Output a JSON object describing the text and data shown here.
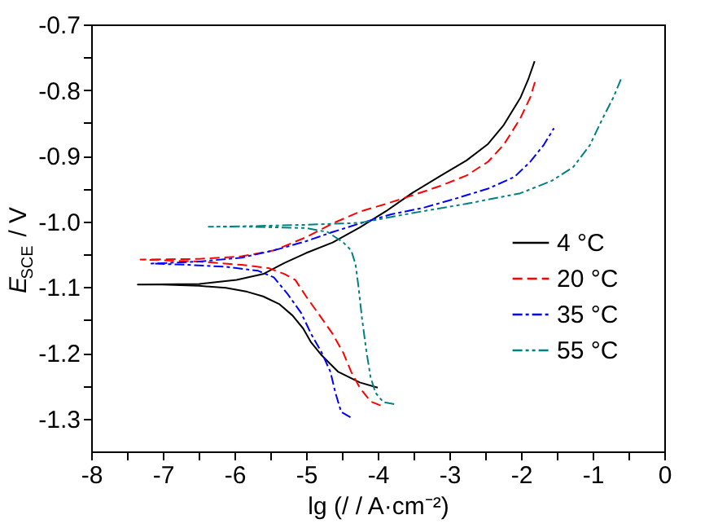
{
  "chart_data": {
    "type": "line",
    "xlabel": "lg (/ / A·cm⁻²)",
    "ylabel": "E$_{SCE}$ / V",
    "xlim": [
      -8,
      0
    ],
    "xticks": [
      -8,
      {
        "value": -7.5,
        "label": null
      },
      -7,
      {
        "value": -6.5,
        "label": null
      },
      -6,
      {
        "value": -5.5,
        "label": null
      },
      -5,
      {
        "value": -4.5,
        "label": null
      },
      -4,
      {
        "value": -3.5,
        "label": null
      },
      -3,
      {
        "value": -2.5,
        "label": null
      },
      -2,
      {
        "value": -1.5,
        "label": null
      },
      -1,
      {
        "value": -0.5,
        "label": null
      },
      0
    ],
    "ylim": [
      -1.35,
      -0.7
    ],
    "yticks": [
      {
        "value": -1.3,
        "label": "-1.3"
      },
      {
        "value": -1.25,
        "label": null
      },
      {
        "value": -1.2,
        "label": "-1.2"
      },
      {
        "value": -1.15,
        "label": null
      },
      {
        "value": -1.1,
        "label": "-1.1"
      },
      {
        "value": -1.05,
        "label": null
      },
      {
        "value": -1.0,
        "label": "-1.0"
      },
      {
        "value": -0.95,
        "label": null
      },
      {
        "value": -0.9,
        "label": "-0.9"
      },
      {
        "value": -0.85,
        "label": null
      },
      {
        "value": -0.8,
        "label": "-0.8"
      },
      {
        "value": -0.75,
        "label": null
      },
      {
        "value": -0.7,
        "label": "-0.7"
      }
    ],
    "grid": false,
    "legend": "right",
    "marker": "none",
    "series": [
      {
        "name": "4 °C",
        "color": "#000000",
        "line_style": "solid",
        "x": [
          -4.0,
          -4.25,
          -4.55,
          -4.78,
          -4.93,
          -5.04,
          -5.19,
          -5.37,
          -5.6,
          -5.82,
          -6.12,
          -6.49,
          -7.01,
          -7.35,
          -6.49,
          -5.97,
          -5.6,
          -5.3,
          -5.0,
          -4.63,
          -4.25,
          -3.88,
          -3.51,
          -3.13,
          -2.76,
          -2.46,
          -2.24,
          -2.01,
          -1.9,
          -1.81
        ],
        "values": [
          -1.253,
          -1.245,
          -1.229,
          -1.204,
          -1.184,
          -1.163,
          -1.143,
          -1.126,
          -1.114,
          -1.107,
          -1.101,
          -1.098,
          -1.096,
          -1.096,
          -1.095,
          -1.089,
          -1.08,
          -1.063,
          -1.048,
          -1.032,
          -1.009,
          -0.984,
          -0.956,
          -0.931,
          -0.907,
          -0.882,
          -0.853,
          -0.812,
          -0.784,
          -0.756
        ]
      },
      {
        "name": "20 °C",
        "color": "#ff0000",
        "line_style": "dashed",
        "x": [
          -3.96,
          -4.1,
          -4.25,
          -4.37,
          -4.48,
          -4.63,
          -4.81,
          -5.0,
          -5.15,
          -5.3,
          -5.52,
          -5.9,
          -6.49,
          -7.01,
          -7.31,
          -6.49,
          -5.9,
          -5.45,
          -5.0,
          -4.63,
          -4.25,
          -3.88,
          -3.51,
          -3.13,
          -2.76,
          -2.46,
          -2.24,
          -2.01,
          -1.87,
          -1.79
        ],
        "values": [
          -1.28,
          -1.274,
          -1.253,
          -1.229,
          -1.2,
          -1.171,
          -1.143,
          -1.114,
          -1.089,
          -1.08,
          -1.071,
          -1.066,
          -1.061,
          -1.059,
          -1.058,
          -1.057,
          -1.053,
          -1.044,
          -1.024,
          -1.003,
          -0.985,
          -0.973,
          -0.96,
          -0.946,
          -0.93,
          -0.909,
          -0.883,
          -0.843,
          -0.811,
          -0.782
        ]
      },
      {
        "name": "35 °C",
        "color": "#0000ff",
        "line_style": "dashdot",
        "x": [
          -4.38,
          -4.51,
          -4.59,
          -4.66,
          -4.78,
          -4.93,
          -5.07,
          -5.26,
          -5.45,
          -5.67,
          -6.12,
          -6.64,
          -7.16,
          -6.49,
          -5.9,
          -5.45,
          -5.0,
          -4.63,
          -4.25,
          -3.81,
          -3.36,
          -2.91,
          -2.46,
          -2.09,
          -1.87,
          -1.68,
          -1.54
        ],
        "values": [
          -1.298,
          -1.29,
          -1.261,
          -1.229,
          -1.2,
          -1.171,
          -1.139,
          -1.11,
          -1.085,
          -1.075,
          -1.069,
          -1.066,
          -1.064,
          -1.061,
          -1.055,
          -1.044,
          -1.03,
          -1.016,
          -1.003,
          -0.989,
          -0.979,
          -0.965,
          -0.95,
          -0.932,
          -0.909,
          -0.883,
          -0.858
        ]
      },
      {
        "name": "55 °C",
        "color": "#008080",
        "line_style": "dashdotdot",
        "x": [
          -3.77,
          -3.92,
          -4.03,
          -4.1,
          -4.16,
          -4.22,
          -4.27,
          -4.31,
          -4.37,
          -4.48,
          -4.7,
          -5.0,
          -5.75,
          -6.36,
          -5.75,
          -5.0,
          -4.25,
          -3.51,
          -2.76,
          -2.01,
          -1.57,
          -1.27,
          -1.04,
          -0.86,
          -0.71,
          -0.6
        ],
        "values": [
          -1.278,
          -1.275,
          -1.261,
          -1.237,
          -1.196,
          -1.147,
          -1.098,
          -1.065,
          -1.044,
          -1.032,
          -1.016,
          -1.01,
          -1.008,
          -1.008,
          -1.007,
          -1.005,
          -1.002,
          -0.987,
          -0.973,
          -0.957,
          -0.938,
          -0.917,
          -0.884,
          -0.843,
          -0.811,
          -0.782
        ]
      }
    ]
  }
}
